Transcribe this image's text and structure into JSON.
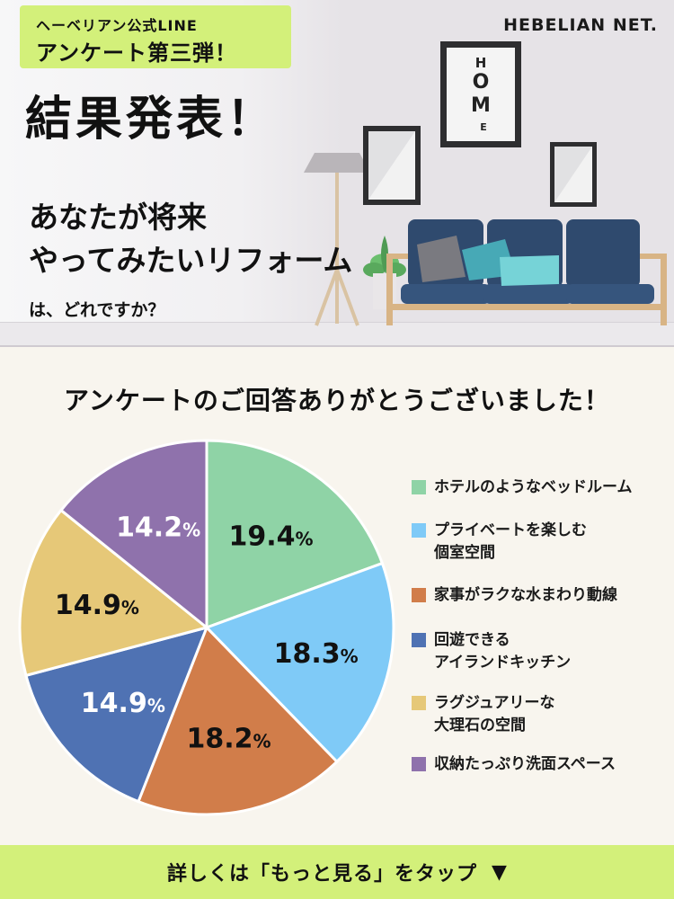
{
  "header": {
    "badge_line1": "ヘーベリアン公式LINE",
    "badge_line2": "アンケート第三弾！",
    "brand": "HEBELIAN NET.",
    "headline": "結果発表！",
    "question_line1": "あなたが将来",
    "question_line2": "やってみたいリフォーム",
    "question_line3": "は、どれですか？",
    "poster_text": "HOME",
    "accent_color": "#d3f07a"
  },
  "main": {
    "thanks": "アンケートのご回答ありがとうございました！"
  },
  "chart_data": {
    "type": "pie",
    "unit": "%",
    "slices": [
      {
        "label": "ホテルのようなベッドルーム",
        "value": 19.4,
        "color": "#8fd3a6"
      },
      {
        "label": "プライベートを楽しむ\n個室空間",
        "value": 18.3,
        "color": "#7fcaf7"
      },
      {
        "label": "家事がラクな水まわり動線",
        "value": 18.2,
        "color": "#d17d4a"
      },
      {
        "label": "回遊できる\nアイランドキッチン",
        "value": 14.9,
        "color": "#4f72b3"
      },
      {
        "label": "ラグジュアリーな\n大理石の空間",
        "value": 14.9,
        "color": "#e6c878"
      },
      {
        "label": "収納たっぷり洗面スペース",
        "value": 14.2,
        "color": "#8f72ac"
      }
    ]
  },
  "footer": {
    "cta": "詳しくは「もっと見る」をタップ",
    "arrow_icon": "triangle-down-icon"
  }
}
